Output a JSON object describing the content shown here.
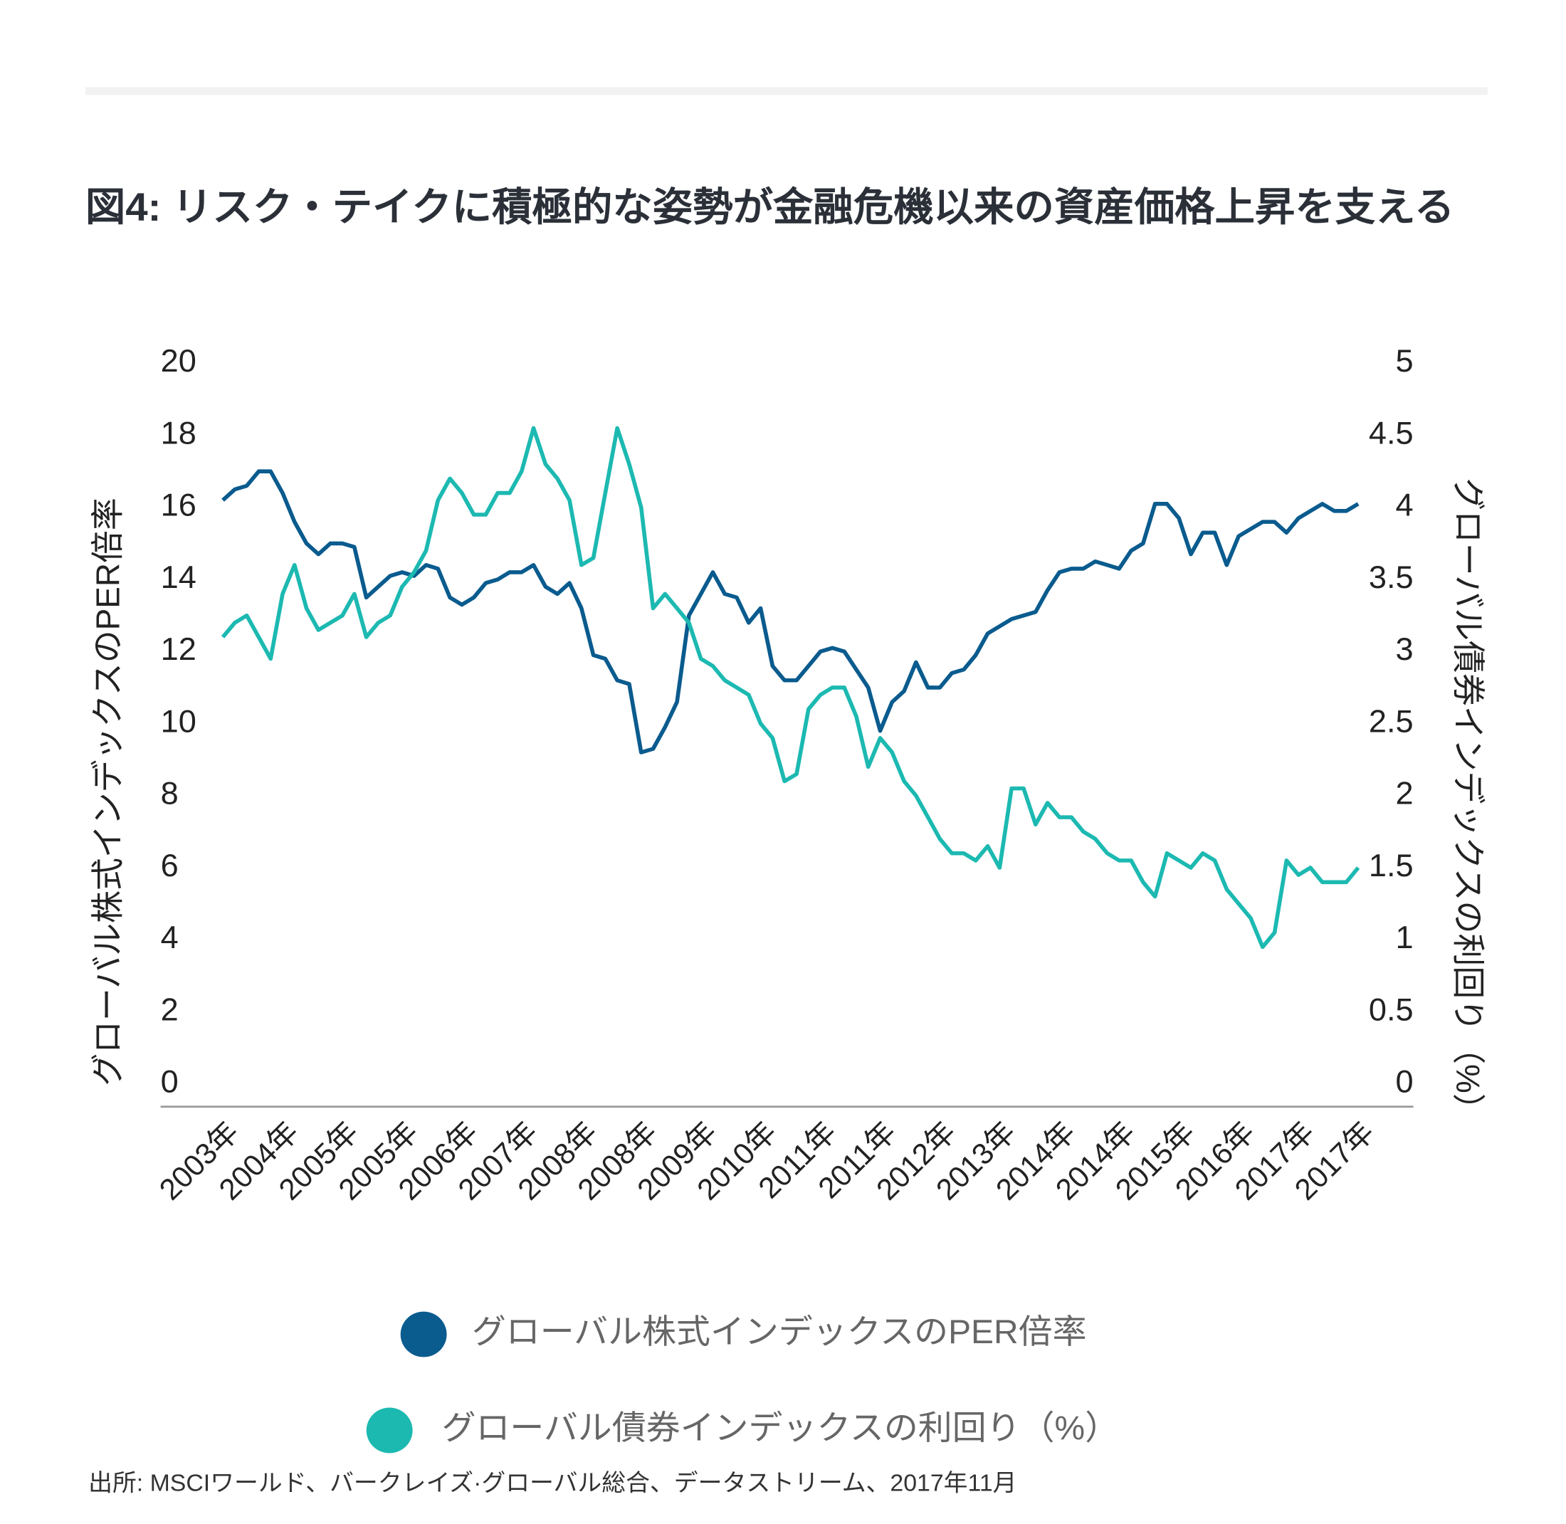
{
  "chart_data": {
    "type": "line",
    "title": "図4: リスク・テイクに積極的な姿勢が金融危機以来の資産価格上昇を支える",
    "y_label": "グローバル株式インデックスのPER倍率",
    "y2_label": "グローバル債券インデックスの利回り（%）",
    "source": "出所: MSCIワールド、バークレイズ·グローバル総合、データストリーム、2017年11月",
    "categories": [
      "2003年",
      null,
      null,
      null,
      null,
      "2004年",
      null,
      null,
      null,
      null,
      "2005年",
      null,
      null,
      null,
      null,
      "2005年",
      null,
      null,
      null,
      null,
      "2006年",
      null,
      null,
      null,
      null,
      "2007年",
      null,
      null,
      null,
      null,
      "2008年",
      null,
      null,
      null,
      null,
      "2008年",
      null,
      null,
      null,
      null,
      "2009年",
      null,
      null,
      null,
      null,
      "2010年",
      null,
      null,
      null,
      null,
      "2011年",
      null,
      null,
      null,
      null,
      "2011年",
      null,
      null,
      null,
      null,
      "2012年",
      null,
      null,
      null,
      null,
      "2013年",
      null,
      null,
      null,
      null,
      "2014年",
      null,
      null,
      null,
      null,
      "2014年",
      null,
      null,
      null,
      null,
      "2015年",
      null,
      null,
      null,
      null,
      "2016年",
      null,
      null,
      null,
      null,
      "2017年",
      null,
      null,
      null,
      null,
      "2017年"
    ],
    "series": [
      {
        "name": "グローバル株式インデックスのPER倍率",
        "color": "#0a5b8e",
        "axis": "y",
        "values": [
          16.2,
          16.5,
          16.6,
          17.0,
          17.0,
          16.4,
          15.6,
          15.0,
          14.7,
          15.0,
          15.0,
          14.9,
          13.5,
          13.8,
          14.1,
          14.2,
          14.1,
          14.4,
          14.3,
          13.5,
          13.3,
          13.5,
          13.9,
          14.0,
          14.2,
          14.2,
          14.4,
          13.8,
          13.6,
          13.9,
          13.2,
          11.9,
          11.8,
          11.2,
          11.1,
          9.2,
          9.3,
          9.9,
          10.6,
          13.0,
          13.6,
          14.2,
          13.6,
          13.5,
          12.8,
          13.2,
          11.6,
          11.2,
          11.2,
          11.6,
          12.0,
          12.1,
          12.0,
          11.5,
          11.0,
          9.8,
          10.6,
          10.9,
          11.7,
          11.0,
          11.0,
          11.4,
          11.5,
          11.9,
          12.5,
          12.7,
          12.9,
          13.0,
          13.1,
          13.7,
          14.2,
          14.3,
          14.3,
          14.5,
          14.4,
          14.3,
          14.8,
          15.0,
          16.1,
          16.1,
          15.7,
          14.7,
          15.3,
          15.3,
          14.4,
          15.2,
          15.4,
          15.6,
          15.6,
          15.3,
          15.7,
          15.9,
          16.1,
          15.9,
          15.9,
          16.1
        ]
      },
      {
        "name": "グローバル債券インデックスの利回り（%）",
        "color": "#1cb9b1",
        "axis": "y2",
        "values": [
          3.1,
          3.2,
          3.25,
          3.1,
          2.95,
          3.4,
          3.6,
          3.3,
          3.15,
          3.2,
          3.25,
          3.4,
          3.1,
          3.2,
          3.25,
          3.45,
          3.55,
          3.7,
          4.05,
          4.2,
          4.1,
          3.95,
          3.95,
          4.1,
          4.1,
          4.25,
          4.55,
          4.3,
          4.2,
          4.05,
          3.6,
          3.65,
          4.1,
          4.55,
          4.3,
          4.0,
          3.3,
          3.4,
          3.3,
          3.2,
          2.95,
          2.9,
          2.8,
          2.75,
          2.7,
          2.5,
          2.4,
          2.1,
          2.15,
          2.6,
          2.7,
          2.75,
          2.75,
          2.55,
          2.2,
          2.4,
          2.3,
          2.1,
          2.0,
          1.85,
          1.7,
          1.6,
          1.6,
          1.55,
          1.65,
          1.5,
          2.05,
          2.05,
          1.8,
          1.95,
          1.85,
          1.85,
          1.75,
          1.7,
          1.6,
          1.55,
          1.55,
          1.4,
          1.3,
          1.6,
          1.55,
          1.5,
          1.6,
          1.55,
          1.35,
          1.25,
          1.15,
          0.95,
          1.05,
          1.55,
          1.45,
          1.5,
          1.4,
          1.4,
          1.4,
          1.5
        ]
      }
    ],
    "ylim": [
      0,
      20
    ],
    "yticks": [
      0,
      2,
      4,
      6,
      8,
      10,
      12,
      14,
      16,
      18,
      20
    ],
    "y2lim": [
      0,
      5
    ],
    "y2ticks": [
      0,
      0.5,
      1,
      1.5,
      2,
      2.5,
      3,
      3.5,
      4,
      4.5,
      5
    ],
    "legend": "bottom"
  }
}
